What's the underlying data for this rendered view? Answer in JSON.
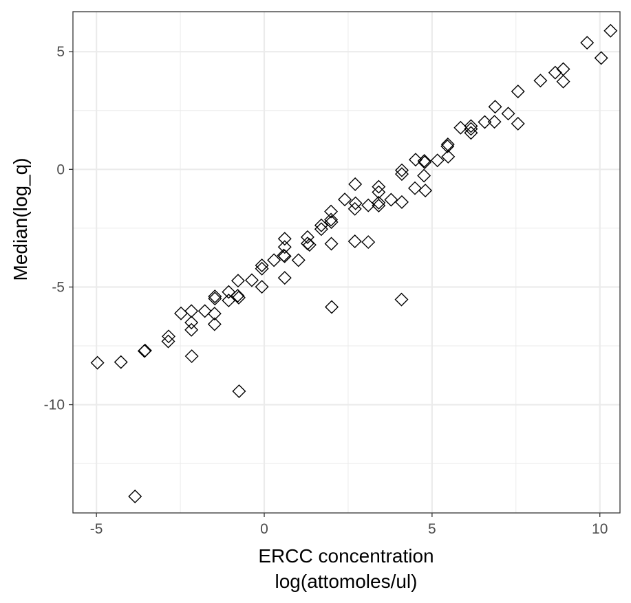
{
  "chart_data": {
    "type": "scatter",
    "title": "",
    "xlabel": "ERCC concentration",
    "xlabel_line2": "log(attomoles/ul)",
    "ylabel": "Median(log_q)",
    "xlim": [
      -5.7,
      10.6
    ],
    "ylim": [
      -14.6,
      6.7
    ],
    "x_ticks": [
      -5,
      0,
      5,
      10
    ],
    "x_tick_labels": [
      "-5",
      "0",
      "5",
      "10"
    ],
    "y_ticks": [
      5,
      0,
      -5,
      -10
    ],
    "y_tick_labels": [
      "5",
      "0",
      "-5",
      "-10"
    ],
    "x_minor_ticks": [
      -2.5,
      2.5,
      7.5
    ],
    "y_minor_ticks": [
      2.5,
      -2.5,
      -7.5,
      -12.5
    ],
    "grid": true,
    "marker": "open-diamond",
    "colors": {
      "marker_stroke": "#000000",
      "grid": "#ebebeb",
      "panel_border": "#333333"
    },
    "series": [
      {
        "points": [
          [
            -4.97,
            -8.22
          ],
          [
            -4.27,
            -8.19
          ],
          [
            -3.55,
            -7.7
          ],
          [
            -3.57,
            -7.72
          ],
          [
            -2.85,
            -7.1
          ],
          [
            -2.86,
            -7.31
          ],
          [
            -2.48,
            -6.12
          ],
          [
            -2.17,
            -6.02
          ],
          [
            -2.17,
            -6.82
          ],
          [
            -2.17,
            -6.51
          ],
          [
            -2.16,
            -7.94
          ],
          [
            -3.85,
            -13.9
          ],
          [
            -1.77,
            -6.02
          ],
          [
            -1.47,
            -5.4
          ],
          [
            -1.47,
            -5.49
          ],
          [
            -1.48,
            -6.13
          ],
          [
            -1.48,
            -6.58
          ],
          [
            -1.06,
            -5.21
          ],
          [
            -1.06,
            -5.57
          ],
          [
            -0.78,
            -4.73
          ],
          [
            -0.79,
            -5.37
          ],
          [
            -0.76,
            -5.45
          ],
          [
            -0.75,
            -9.43
          ],
          [
            -0.37,
            -4.71
          ],
          [
            -0.07,
            -4.08
          ],
          [
            -0.07,
            -4.22
          ],
          [
            -0.07,
            -4.99
          ],
          [
            0.29,
            -3.86
          ],
          [
            0.61,
            -2.95
          ],
          [
            0.61,
            -3.3
          ],
          [
            0.61,
            -3.69
          ],
          [
            0.58,
            -3.66
          ],
          [
            0.61,
            -4.61
          ],
          [
            1.02,
            -3.86
          ],
          [
            1.29,
            -2.88
          ],
          [
            1.29,
            -3.15
          ],
          [
            1.35,
            -3.21
          ],
          [
            1.7,
            -2.38
          ],
          [
            1.7,
            -2.54
          ],
          [
            1.99,
            -1.79
          ],
          [
            1.99,
            -2.14
          ],
          [
            2.0,
            -2.24
          ],
          [
            2.0,
            -3.16
          ],
          [
            2.01,
            -5.85
          ],
          [
            2.4,
            -1.28
          ],
          [
            2.71,
            -0.63
          ],
          [
            2.72,
            -1.44
          ],
          [
            2.7,
            -1.68
          ],
          [
            2.7,
            -3.06
          ],
          [
            3.1,
            -1.53
          ],
          [
            3.1,
            -3.09
          ],
          [
            3.41,
            -0.74
          ],
          [
            3.41,
            -0.97
          ],
          [
            3.41,
            -1.42
          ],
          [
            3.41,
            -1.54
          ],
          [
            3.78,
            -1.29
          ],
          [
            4.1,
            -0.04
          ],
          [
            4.1,
            -0.2
          ],
          [
            4.1,
            -1.39
          ],
          [
            4.09,
            -5.53
          ],
          [
            4.51,
            0.41
          ],
          [
            4.49,
            -0.8
          ],
          [
            4.77,
            0.36
          ],
          [
            4.78,
            0.3
          ],
          [
            4.76,
            -0.27
          ],
          [
            4.8,
            -0.9
          ],
          [
            5.16,
            0.38
          ],
          [
            5.47,
            1.06
          ],
          [
            5.46,
            0.98
          ],
          [
            5.48,
            0.54
          ],
          [
            5.85,
            1.77
          ],
          [
            6.16,
            1.84
          ],
          [
            6.16,
            1.72
          ],
          [
            6.16,
            1.55
          ],
          [
            6.57,
            2.01
          ],
          [
            6.88,
            2.66
          ],
          [
            6.86,
            2.02
          ],
          [
            7.27,
            2.37
          ],
          [
            7.56,
            3.31
          ],
          [
            7.56,
            1.94
          ],
          [
            8.23,
            3.77
          ],
          [
            8.67,
            4.11
          ],
          [
            8.91,
            4.26
          ],
          [
            8.91,
            3.73
          ],
          [
            9.62,
            5.38
          ],
          [
            10.04,
            4.73
          ],
          [
            10.32,
            5.89
          ]
        ]
      }
    ]
  }
}
